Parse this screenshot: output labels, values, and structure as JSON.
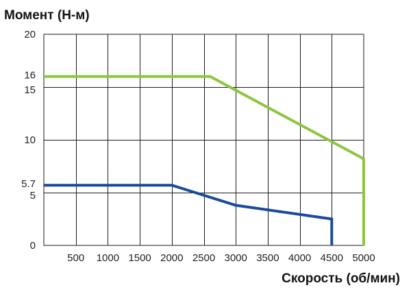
{
  "chart_data": {
    "type": "line",
    "ylabel": "Момент (Н-м)",
    "xlabel": "Скорость (об/мин)",
    "xlim": [
      0,
      5000
    ],
    "ylim": [
      0,
      20
    ],
    "x_ticks": [
      500,
      1000,
      1500,
      2000,
      2500,
      3000,
      3500,
      4000,
      4500,
      5000
    ],
    "x_tick_labels": [
      "500",
      "1000",
      "1500",
      "2000",
      "2500",
      "3000",
      "3500",
      "4000",
      "4500",
      "5000"
    ],
    "y_ticks": [
      0,
      5,
      5.7,
      10,
      15,
      16,
      20
    ],
    "y_tick_labels": [
      "0",
      "5",
      "5.7",
      "10",
      "15",
      "16",
      "20"
    ],
    "grid_x": [
      500,
      1000,
      1500,
      2000,
      2500,
      3000,
      3500,
      4000,
      4500
    ],
    "grid_y": [
      5,
      10,
      15
    ],
    "grid": true,
    "series": [
      {
        "color": "#8cc63f",
        "x": [
          0,
          2600,
          5000,
          5000
        ],
        "y": [
          16,
          16,
          8.2,
          0
        ]
      },
      {
        "color": "#1a4a9c",
        "x": [
          0,
          2000,
          3000,
          4500,
          4500
        ],
        "y": [
          5.7,
          5.7,
          3.8,
          2.5,
          0
        ]
      }
    ]
  }
}
